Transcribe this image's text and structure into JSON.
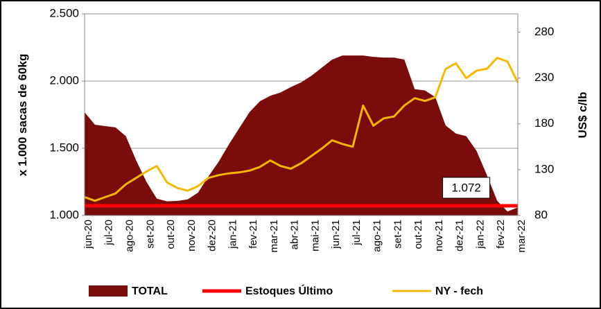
{
  "chart_data": {
    "type": "line",
    "categories": [
      "jun-20",
      null,
      "jul-20",
      null,
      "ago-20",
      null,
      "set-20",
      null,
      "out-20",
      null,
      "nov-20",
      null,
      "dez-20",
      null,
      "jan-21",
      null,
      "fev-21",
      null,
      "mar-21",
      null,
      "abr-21",
      null,
      "mai-21",
      null,
      "jun-21",
      null,
      "jul-21",
      null,
      "ago-21",
      null,
      "set-21",
      null,
      "out-21",
      null,
      "nov-21",
      null,
      "dez-21",
      null,
      "jan-22",
      null,
      "fev-22",
      null,
      "mar-22"
    ],
    "ylabel": "x 1.000 sacas de 60kg",
    "y2label": "US$ c/lb",
    "ylim": [
      1000,
      2500
    ],
    "yticks": [
      {
        "value": 1000,
        "label": "1.000"
      },
      {
        "value": 1500,
        "label": "1.500"
      },
      {
        "value": 2000,
        "label": "2.000"
      },
      {
        "value": 2500,
        "label": "2.500"
      }
    ],
    "y2lim": [
      80,
      300
    ],
    "y2ticks": [
      80,
      130,
      180,
      230,
      280
    ],
    "grid": true,
    "series": [
      {
        "name": "TOTAL",
        "type": "area",
        "color": "#7b0c0c",
        "values": [
          1768,
          1675,
          1665,
          1655,
          1590,
          1410,
          1250,
          1125,
          1105,
          1108,
          1120,
          1170,
          1290,
          1400,
          1530,
          1650,
          1770,
          1850,
          1890,
          1915,
          1955,
          1990,
          2040,
          2100,
          2160,
          2190,
          2190,
          2190,
          2180,
          2175,
          2175,
          2160,
          1940,
          1930,
          1880,
          1670,
          1610,
          1590,
          1480,
          1300,
          1110,
          1030,
          1060
        ]
      },
      {
        "name": "Estoques Último",
        "type": "line",
        "color": "#ff0000",
        "width": 5,
        "values": [
          1072,
          1072,
          1072,
          1072,
          1072,
          1072,
          1072,
          1072,
          1072,
          1072,
          1072,
          1072,
          1072,
          1072,
          1072,
          1072,
          1072,
          1072,
          1072,
          1072,
          1072,
          1072,
          1072,
          1072,
          1072,
          1072,
          1072,
          1072,
          1072,
          1072,
          1072,
          1072,
          1072,
          1072,
          1072,
          1072,
          1072,
          1072,
          1072,
          1072,
          1072,
          1072,
          1072
        ],
        "value_labels": [
          null,
          null,
          null,
          null,
          null,
          null,
          null,
          null,
          null,
          null,
          null,
          null,
          null,
          null,
          null,
          null,
          null,
          null,
          null,
          null,
          null,
          null,
          null,
          null,
          null,
          null,
          null,
          null,
          null,
          null,
          null,
          null,
          null,
          null,
          null,
          null,
          null,
          "1.072",
          null,
          null,
          null,
          null,
          null
        ]
      },
      {
        "name": "NY - fech",
        "type": "line",
        "axis": "y2",
        "color": "#f5b800",
        "width": 3,
        "values": [
          100,
          96,
          100,
          104,
          114,
          121,
          128,
          134,
          116,
          110,
          107,
          112,
          121,
          124,
          126,
          127,
          129,
          133,
          140,
          134,
          131,
          137,
          145,
          153,
          162,
          158,
          155,
          200,
          178,
          186,
          188,
          200,
          208,
          205,
          209,
          240,
          246,
          230,
          238,
          240,
          252,
          248,
          225
        ]
      }
    ]
  }
}
